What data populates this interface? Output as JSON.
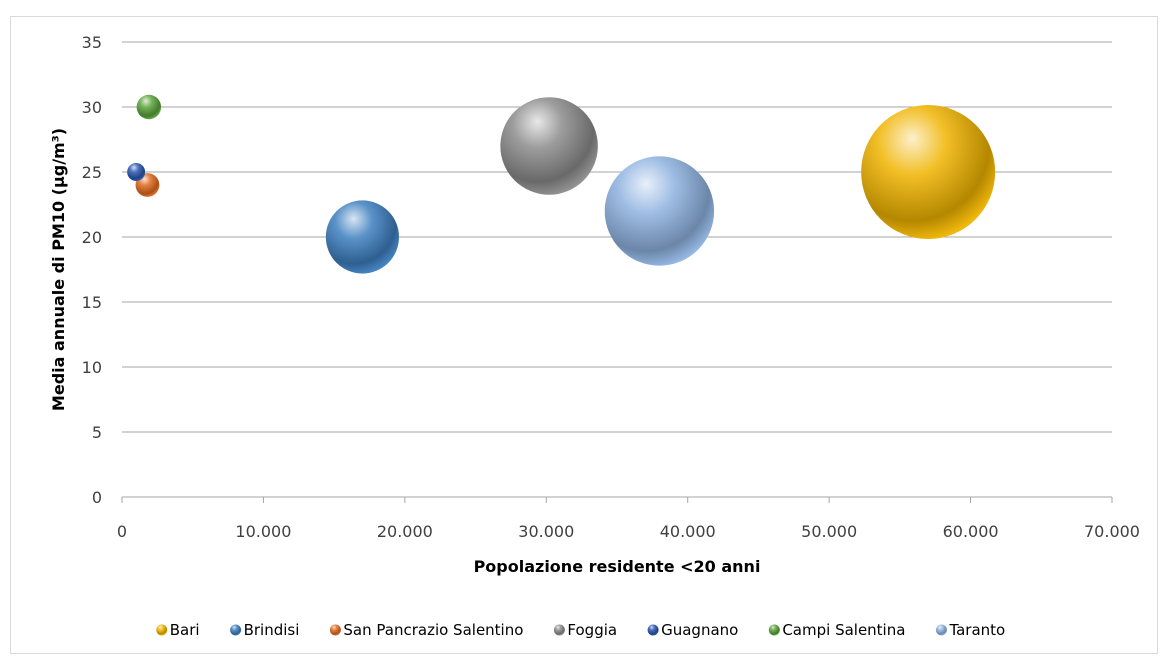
{
  "chart_data": {
    "type": "bubble",
    "xlabel": "Popolazione residente <20 anni",
    "ylabel": "Media annuale di PM10 (µg/m³)",
    "xlim": [
      0,
      70000
    ],
    "ylim": [
      0,
      35
    ],
    "x_ticks": [
      "0",
      "10.000",
      "20.000",
      "30.000",
      "40.000",
      "50.000",
      "60.000",
      "70.000"
    ],
    "y_ticks": [
      "0",
      "5",
      "10",
      "15",
      "20",
      "25",
      "30",
      "35"
    ],
    "grid": "horizontal",
    "legend_position": "bottom",
    "series": [
      {
        "name": "Bari",
        "x": 57000,
        "y": 25,
        "size": 57000,
        "color": "#f0b400"
      },
      {
        "name": "Brindisi",
        "x": 17000,
        "y": 20,
        "size": 17000,
        "color": "#3d7fc0"
      },
      {
        "name": "San Pancrazio Salentino",
        "x": 1800,
        "y": 24,
        "size": 1800,
        "color": "#e06a1f"
      },
      {
        "name": "Foggia",
        "x": 30200,
        "y": 27,
        "size": 30200,
        "color": "#8c8c8c"
      },
      {
        "name": "Guagnano",
        "x": 1000,
        "y": 25,
        "size": 1000,
        "color": "#2a56b0"
      },
      {
        "name": "Campi Salentina",
        "x": 1900,
        "y": 30,
        "size": 1900,
        "color": "#5aa33a"
      },
      {
        "name": "Taranto",
        "x": 38000,
        "y": 22,
        "size": 38000,
        "color": "#8fb3e0"
      }
    ]
  }
}
